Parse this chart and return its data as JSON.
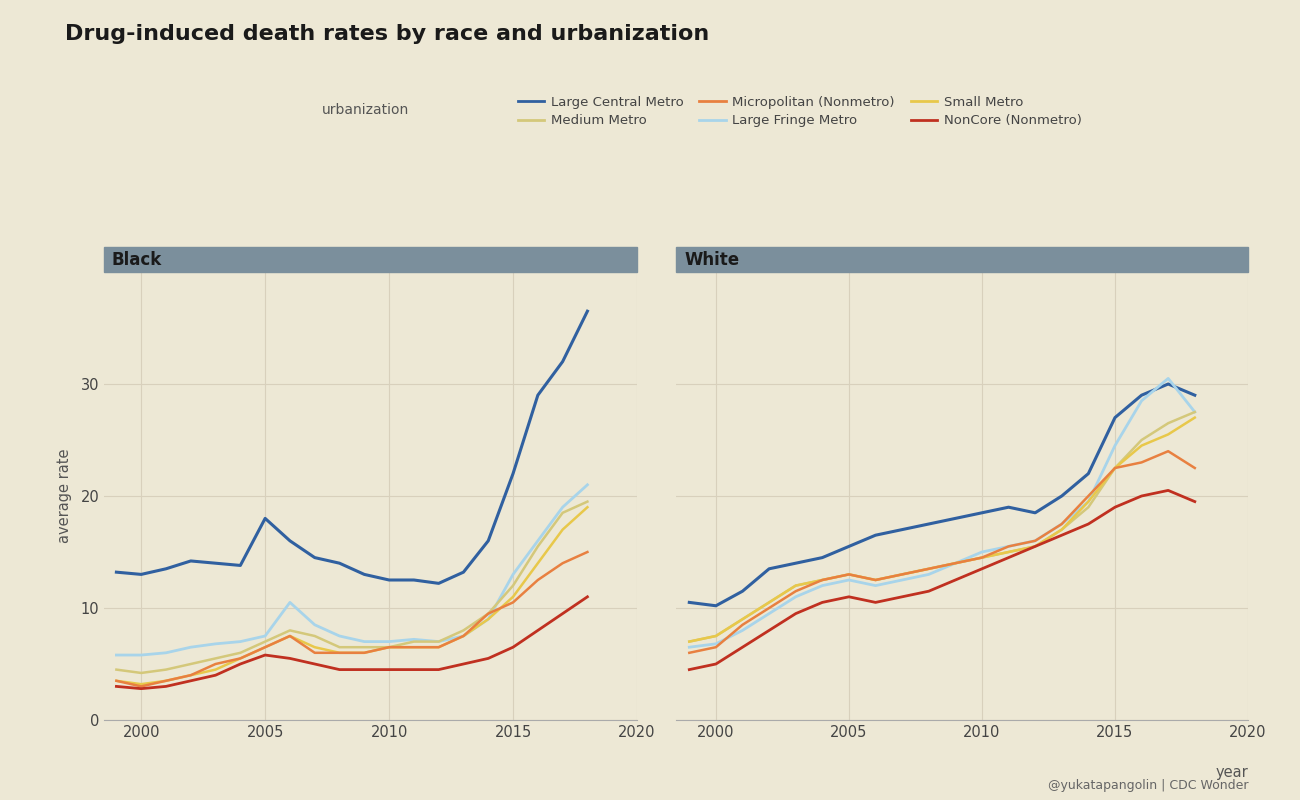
{
  "title": "Drug-induced death rates by race and urbanization",
  "ylabel": "average rate",
  "xlabel": "year",
  "background_color": "#ede8d5",
  "panel_bg": "#ede8d5",
  "facet_header_bg": "#7b8f9c",
  "grid_color": "#d8d0bc",
  "annotation": "@yukatapangolin | CDC Wonder",
  "years": [
    1999,
    2000,
    2001,
    2002,
    2003,
    2004,
    2005,
    2006,
    2007,
    2008,
    2009,
    2010,
    2011,
    2012,
    2013,
    2014,
    2015,
    2016,
    2017,
    2018
  ],
  "series_order": [
    "Large Central Metro",
    "Large Fringe Metro",
    "Medium Metro",
    "Small Metro",
    "Micropolitan (Nonmetro)",
    "NonCore (Nonmetro)"
  ],
  "series": {
    "Large Central Metro": {
      "color": "#3060a0",
      "lw": 2.2,
      "black": [
        13.2,
        13.0,
        13.5,
        14.2,
        14.0,
        13.8,
        18.0,
        16.0,
        14.5,
        14.0,
        13.0,
        12.5,
        12.5,
        12.2,
        13.2,
        16.0,
        22.0,
        29.0,
        32.0,
        36.5
      ],
      "white": [
        10.5,
        10.2,
        11.5,
        13.5,
        14.0,
        14.5,
        15.5,
        16.5,
        17.0,
        17.5,
        18.0,
        18.5,
        19.0,
        18.5,
        20.0,
        22.0,
        27.0,
        29.0,
        30.0,
        29.0
      ]
    },
    "Large Fringe Metro": {
      "color": "#a8d4ea",
      "lw": 2.0,
      "black": [
        5.8,
        5.8,
        6.0,
        6.5,
        6.8,
        7.0,
        7.5,
        10.5,
        8.5,
        7.5,
        7.0,
        7.0,
        7.2,
        7.0,
        7.5,
        9.0,
        13.0,
        16.0,
        19.0,
        21.0
      ],
      "white": [
        6.5,
        6.8,
        8.0,
        9.5,
        11.0,
        12.0,
        12.5,
        12.0,
        12.5,
        13.0,
        14.0,
        15.0,
        15.5,
        16.0,
        17.5,
        19.5,
        24.5,
        28.5,
        30.5,
        27.5
      ]
    },
    "Medium Metro": {
      "color": "#d4c87a",
      "lw": 1.8,
      "black": [
        4.5,
        4.2,
        4.5,
        5.0,
        5.5,
        6.0,
        7.0,
        8.0,
        7.5,
        6.5,
        6.5,
        6.5,
        7.0,
        7.0,
        8.0,
        9.5,
        12.0,
        15.5,
        18.5,
        19.5
      ],
      "white": [
        7.0,
        7.5,
        9.0,
        10.5,
        12.0,
        12.5,
        13.0,
        12.5,
        13.0,
        13.5,
        14.0,
        14.5,
        15.0,
        15.5,
        17.0,
        19.0,
        22.5,
        25.0,
        26.5,
        27.5
      ]
    },
    "Small Metro": {
      "color": "#e8c84a",
      "lw": 1.8,
      "black": [
        3.5,
        3.2,
        3.5,
        4.0,
        4.5,
        5.5,
        6.5,
        7.5,
        6.5,
        6.0,
        6.0,
        6.5,
        6.5,
        6.5,
        7.5,
        9.0,
        11.0,
        14.0,
        17.0,
        19.0
      ],
      "white": [
        7.0,
        7.5,
        9.0,
        10.5,
        12.0,
        12.5,
        13.0,
        12.5,
        13.0,
        13.5,
        14.0,
        14.5,
        15.0,
        15.5,
        17.0,
        19.5,
        22.5,
        24.5,
        25.5,
        27.0
      ]
    },
    "Micropolitan (Nonmetro)": {
      "color": "#e88040",
      "lw": 1.8,
      "black": [
        3.5,
        3.0,
        3.5,
        4.0,
        5.0,
        5.5,
        6.5,
        7.5,
        6.0,
        6.0,
        6.0,
        6.5,
        6.5,
        6.5,
        7.5,
        9.5,
        10.5,
        12.5,
        14.0,
        15.0
      ],
      "white": [
        6.0,
        6.5,
        8.5,
        10.0,
        11.5,
        12.5,
        13.0,
        12.5,
        13.0,
        13.5,
        14.0,
        14.5,
        15.5,
        16.0,
        17.5,
        20.0,
        22.5,
        23.0,
        24.0,
        22.5
      ]
    },
    "NonCore (Nonmetro)": {
      "color": "#c03020",
      "lw": 2.0,
      "black": [
        3.0,
        2.8,
        3.0,
        3.5,
        4.0,
        5.0,
        5.8,
        5.5,
        5.0,
        4.5,
        4.5,
        4.5,
        4.5,
        4.5,
        5.0,
        5.5,
        6.5,
        8.0,
        9.5,
        11.0
      ],
      "white": [
        4.5,
        5.0,
        6.5,
        8.0,
        9.5,
        10.5,
        11.0,
        10.5,
        11.0,
        11.5,
        12.5,
        13.5,
        14.5,
        15.5,
        16.5,
        17.5,
        19.0,
        20.0,
        20.5,
        19.5
      ]
    }
  },
  "legend_row1": [
    "Large Central Metro",
    "Medium Metro",
    "Micropolitan (Nonmetro)"
  ],
  "legend_row2": [
    "Large Fringe Metro",
    "Small Metro",
    "NonCore (Nonmetro)"
  ]
}
